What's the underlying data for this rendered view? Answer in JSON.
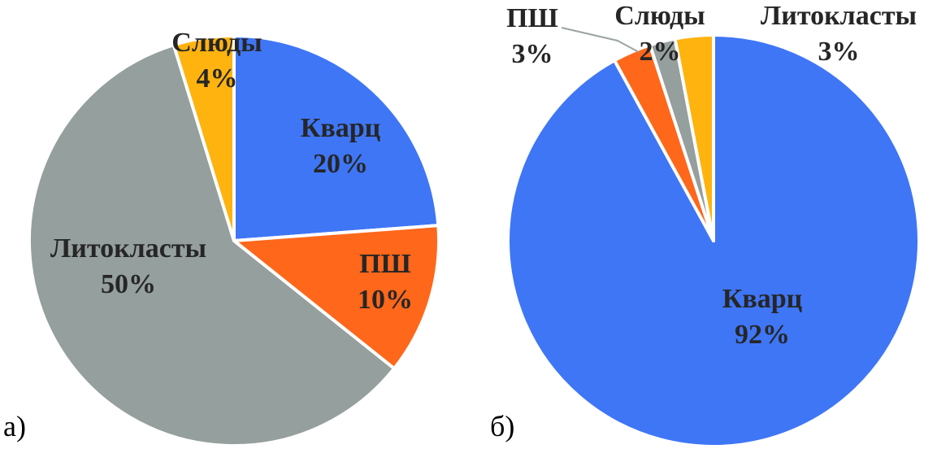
{
  "chart_data": [
    {
      "type": "pie",
      "panel_label": "а)",
      "slices": [
        {
          "name": "Кварц",
          "value": 20,
          "label": "20%",
          "color": "#3F76F6"
        },
        {
          "name": "ПШ",
          "value": 10,
          "label": "10%",
          "color": "#FF671B"
        },
        {
          "name": "Литокласты",
          "value": 50,
          "label": "50%",
          "color": "#959F9E"
        },
        {
          "name": "Слюды",
          "value": 4,
          "label": "4%",
          "color": "#FFB30F"
        }
      ]
    },
    {
      "type": "pie",
      "panel_label": "б)",
      "slices": [
        {
          "name": "Кварц",
          "value": 92,
          "label": "92%",
          "color": "#3F76F6"
        },
        {
          "name": "ПШ",
          "value": 3,
          "label": "3%",
          "color": "#FF671B"
        },
        {
          "name": "Слюды",
          "value": 2,
          "label": "2%",
          "color": "#959F9E"
        },
        {
          "name": "Литокласты",
          "value": 3,
          "label": "3%",
          "color": "#FFB30F"
        }
      ]
    }
  ]
}
